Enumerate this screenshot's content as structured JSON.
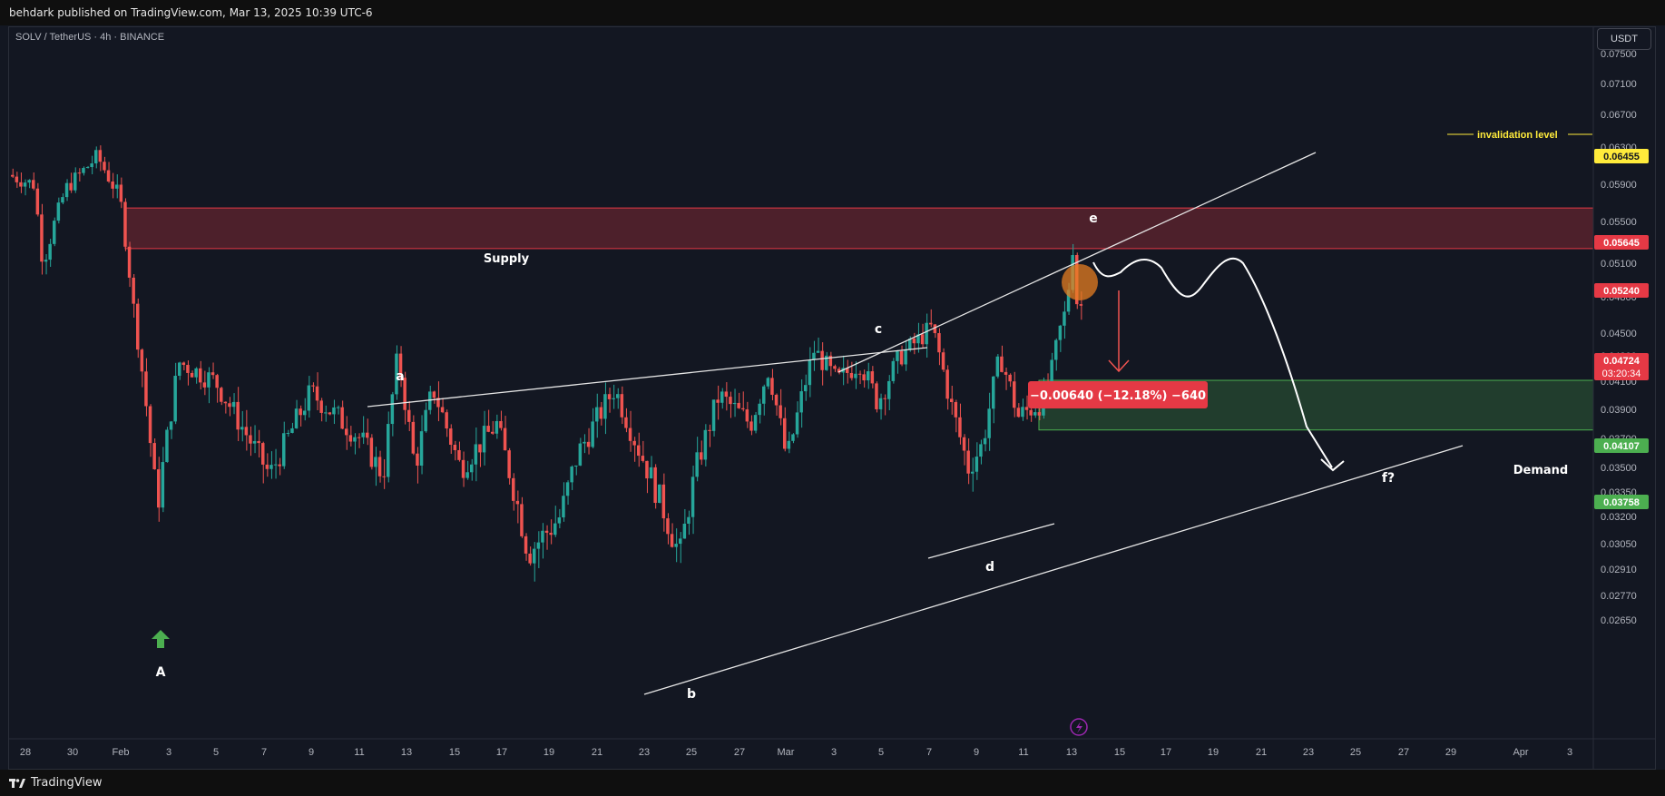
{
  "header": {
    "published": "behdark published on TradingView.com, Mar 13, 2025 10:39 UTC-6"
  },
  "footer": {
    "brand": "TradingView"
  },
  "symbol_line": "SOLV / TetherUS · 4h · BINANCE",
  "currency_button": "USDT",
  "colors": {
    "up": "#26a69a",
    "down": "#ef5350",
    "supply": "#e53945",
    "demand": "#4caf50",
    "invalidation": "#ffeb3b"
  },
  "chart_data": {
    "type": "candlestick",
    "symbol": "SOLV / TetherUS",
    "interval": "4h",
    "exchange": "BINANCE",
    "ylim": [
      0.0258,
      0.0772
    ],
    "x_ticks": [
      "28",
      "30",
      "Feb",
      "3",
      "5",
      "7",
      "9",
      "11",
      "13",
      "15",
      "17",
      "19",
      "21",
      "23",
      "25",
      "27",
      "Mar",
      "3",
      "5",
      "7",
      "9",
      "11",
      "13",
      "15",
      "17",
      "19",
      "21",
      "23",
      "25",
      "27",
      "29",
      "Apr",
      "3"
    ],
    "y_ticks": [
      "0.07500",
      "0.07100",
      "0.06700",
      "0.06300",
      "0.05900",
      "0.05500",
      "0.05100",
      "0.04800",
      "0.04500",
      "0.04300",
      "0.04100",
      "0.03900",
      "0.03700",
      "0.03500",
      "0.03350",
      "0.03200",
      "0.03050",
      "0.02910",
      "0.02770",
      "0.02650"
    ],
    "price_labels": [
      {
        "value": "0.06455",
        "color": "#ffeb3b",
        "text_color": "#131722"
      },
      {
        "value": "0.05645",
        "color": "#e53945",
        "text_color": "#ffffff"
      },
      {
        "value": "0.05240",
        "color": "#e53945",
        "text_color": "#ffffff"
      },
      {
        "value": "0.04724",
        "sub": "03:20:34",
        "color": "#e53945",
        "text_color": "#ffffff"
      },
      {
        "value": "0.04107",
        "color": "#4caf50",
        "text_color": "#ffffff"
      },
      {
        "value": "0.03758",
        "color": "#4caf50",
        "text_color": "#ffffff"
      }
    ],
    "zones": [
      {
        "name": "Supply",
        "from": 0.0524,
        "to": 0.05645
      },
      {
        "name": "Demand",
        "from": 0.03758,
        "to": 0.04107
      }
    ],
    "invalidation": {
      "label": "invalidation level",
      "value": 0.06455
    },
    "wave_labels": [
      "A",
      "a",
      "b",
      "c",
      "d",
      "e",
      "f?"
    ],
    "measure_label": "−0.00640 (−12.18%) −640",
    "last_price": 0.04724,
    "countdown": "03:20:34",
    "candles_summary": {
      "start_high": 0.0627,
      "low_A": 0.0319,
      "high_a": 0.0442,
      "low_b": 0.029,
      "high_c": 0.0472,
      "low_d": 0.0352,
      "high_e": 0.0542,
      "last": 0.04724
    }
  }
}
